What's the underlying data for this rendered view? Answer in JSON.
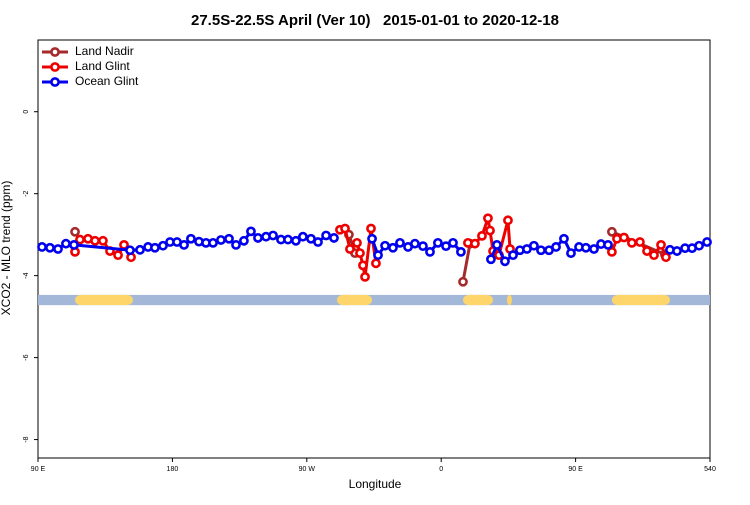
{
  "chart_data": {
    "type": "line",
    "title": "27.5S-22.5S April (Ver 10)   2015-01-01 to 2020-12-18",
    "x_label": "Longitude",
    "y_label": "XCO2 - MLO trend (ppm)",
    "xlim": [
      90,
      540
    ],
    "ylim": [
      -8.45,
      1.75
    ],
    "xticks": [
      {
        "value": 90,
        "label": "90 E"
      },
      180,
      {
        "value": 270,
        "label": "90 W"
      },
      {
        "value": 360,
        "label": "0"
      },
      {
        "value": 450,
        "label": "90 E"
      },
      540
    ],
    "yticks": [
      0,
      -2,
      -4,
      -6,
      -8
    ],
    "legend": "top-left",
    "land_mask": {
      "ylim": [
        -4.72,
        -4.47
      ],
      "ocean_color": "#a3b7d8",
      "land_color": "#fdd56b",
      "land": [
        [
          114.8,
          153.6
        ],
        [
          290.2,
          313.7
        ],
        [
          374.6,
          394.7
        ],
        [
          404.0,
          407.4
        ],
        [
          474.3,
          513.2
        ]
      ]
    },
    "series": [
      {
        "name": "Land Nadir",
        "color": "#a52a2a",
        "x": [
          114.8,
          200,
          298.2,
          302.3,
          380,
          374.6,
          379.3,
          450,
          474.3,
          509.8
        ],
        "values": [
          -2.93,
          null,
          -3.0,
          -3.45,
          null,
          -4.15,
          -3.22,
          null,
          -2.93,
          -3.48
        ]
      },
      {
        "name": "Land Glint",
        "color": "#ee0000",
        "x": [
          114.8,
          118.1,
          123.5,
          128.2,
          133.5,
          138.2,
          143.6,
          147.6,
          152.3,
          230,
          292.2,
          295.6,
          298.9,
          303.6,
          305.6,
          307.6,
          309.0,
          313.0,
          316.3,
          350,
          377.9,
          382.6,
          387.3,
          391.3,
          392.7,
          394.7,
          398.7,
          404.7,
          406.1,
          440,
          474.3,
          477.7,
          482.4,
          487.7,
          493.1,
          497.8,
          502.5,
          507.2,
          510.5
        ],
        "values": [
          -3.42,
          -3.12,
          -3.1,
          -3.15,
          -3.15,
          -3.4,
          -3.5,
          -3.25,
          -3.55,
          null,
          -2.88,
          -2.85,
          -3.35,
          -3.2,
          -3.45,
          -3.75,
          -4.03,
          -2.85,
          -3.7,
          null,
          -3.2,
          -3.22,
          -3.03,
          -2.6,
          -2.9,
          -3.4,
          -3.5,
          -2.65,
          -3.35,
          null,
          -3.42,
          -3.1,
          -3.07,
          -3.2,
          -3.18,
          -3.4,
          -3.5,
          -3.25,
          -3.55
        ]
      },
      {
        "name": "Ocean Glint",
        "color": "#0000ee",
        "x": [
          92.7,
          98.0,
          103.4,
          108.7,
          114.1,
          151.6,
          158.3,
          163.7,
          168.3,
          173.7,
          178.4,
          183.1,
          187.8,
          192.4,
          197.8,
          202.5,
          207.2,
          212.5,
          217.9,
          222.6,
          227.9,
          232.6,
          237.3,
          242.7,
          247.4,
          252.7,
          257.4,
          262.7,
          267.4,
          272.8,
          277.5,
          282.9,
          288.2,
          300,
          313.7,
          317.7,
          322.4,
          327.7,
          332.4,
          337.8,
          342.4,
          347.8,
          352.5,
          357.8,
          363.2,
          367.9,
          373.2,
          383,
          393.3,
          397.3,
          402.7,
          408.1,
          412.7,
          417.4,
          422.1,
          426.8,
          432.2,
          436.9,
          442.2,
          446.9,
          452.3,
          456.9,
          462.3,
          467.0,
          471.7,
          490,
          513.2,
          517.9,
          523.3,
          528.0,
          532.7,
          538.0
        ],
        "values": [
          -3.3,
          -3.32,
          -3.35,
          -3.22,
          -3.25,
          -3.38,
          -3.37,
          -3.3,
          -3.32,
          -3.27,
          -3.18,
          -3.18,
          -3.25,
          -3.1,
          -3.17,
          -3.2,
          -3.2,
          -3.13,
          -3.1,
          -3.25,
          -3.15,
          -2.92,
          -3.08,
          -3.05,
          -3.02,
          -3.12,
          -3.12,
          -3.15,
          -3.05,
          -3.1,
          -3.18,
          -3.02,
          -3.08,
          null,
          -3.1,
          -3.5,
          -3.27,
          -3.32,
          -3.2,
          -3.3,
          -3.22,
          -3.28,
          -3.42,
          -3.2,
          -3.28,
          -3.2,
          -3.42,
          null,
          -3.6,
          -3.25,
          -3.65,
          -3.5,
          -3.38,
          -3.35,
          -3.27,
          -3.38,
          -3.38,
          -3.3,
          -3.1,
          -3.45,
          -3.3,
          -3.32,
          -3.35,
          -3.23,
          -3.25,
          null,
          -3.37,
          -3.4,
          -3.33,
          -3.33,
          -3.27,
          -3.18
        ]
      }
    ]
  }
}
